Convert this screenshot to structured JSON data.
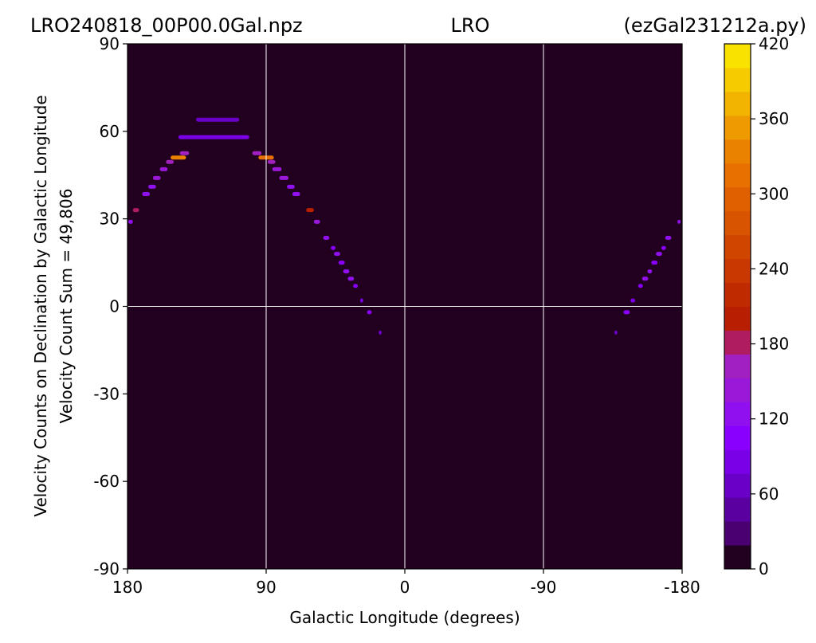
{
  "chart_data": {
    "type": "heatmap",
    "title_left": "LRO240818_00P00.0Gal.npz",
    "title_center": "LRO",
    "title_right": "(ezGal231212a.py)",
    "xlabel": "Galactic Longitude (degrees)",
    "ylabel_line1": "Velocity Counts on Declination by Galactic Longitude",
    "ylabel_line2": "Velocity Count Sum = 49,806",
    "xlim": [
      180,
      -180
    ],
    "ylim": [
      -90,
      90
    ],
    "x_ticks": [
      "180",
      "90",
      "0",
      "-90",
      "-180"
    ],
    "x_tick_values": [
      180,
      90,
      0,
      -90,
      -180
    ],
    "y_ticks": [
      "90",
      "60",
      "30",
      "0",
      "-30",
      "-60",
      "-90"
    ],
    "y_tick_values": [
      90,
      60,
      30,
      0,
      -30,
      -60,
      -90
    ],
    "grid": true,
    "background_color": "#22001f",
    "colorbar": {
      "range": [
        0,
        420
      ],
      "ticks": [
        "420",
        "360",
        "300",
        "240",
        "180",
        "120",
        "60",
        "0"
      ],
      "tick_values": [
        420,
        360,
        300,
        240,
        180,
        120,
        60,
        0
      ],
      "colors": [
        "#22001f",
        "#4a0070",
        "#5a00a0",
        "#6a00c8",
        "#7a00e8",
        "#8a00ff",
        "#9010f0",
        "#9a18d8",
        "#a020c0",
        "#b01c60",
        "#b81e00",
        "#c02a00",
        "#c83800",
        "#d04600",
        "#d85400",
        "#e06000",
        "#e87000",
        "#ea8200",
        "#ee9a00",
        "#f2b400",
        "#f6cc00",
        "#fae200"
      ]
    },
    "cells": [
      {
        "lon": 178,
        "lat": 29,
        "w": 3,
        "v": 120
      },
      {
        "lon": 174.5,
        "lat": 33,
        "w": 4,
        "v": 190
      },
      {
        "lon": 168,
        "lat": 38.5,
        "w": 5,
        "v": 130
      },
      {
        "lon": 164,
        "lat": 41,
        "w": 5,
        "v": 120
      },
      {
        "lon": 161,
        "lat": 44,
        "w": 5,
        "v": 140
      },
      {
        "lon": 156.5,
        "lat": 47,
        "w": 5,
        "v": 150
      },
      {
        "lon": 152.5,
        "lat": 49.5,
        "w": 5,
        "v": 160
      },
      {
        "lon": 147,
        "lat": 51,
        "w": 10,
        "v": 330
      },
      {
        "lon": 143,
        "lat": 52.5,
        "w": 6,
        "v": 170
      },
      {
        "lon": 124,
        "lat": 58,
        "w": 46,
        "v": 80
      },
      {
        "lon": 121.5,
        "lat": 64,
        "w": 28,
        "v": 60
      },
      {
        "lon": 96,
        "lat": 52.5,
        "w": 6,
        "v": 160
      },
      {
        "lon": 90,
        "lat": 51,
        "w": 10,
        "v": 310
      },
      {
        "lon": 86.5,
        "lat": 49.5,
        "w": 5,
        "v": 170
      },
      {
        "lon": 83,
        "lat": 47,
        "w": 6,
        "v": 150
      },
      {
        "lon": 78.5,
        "lat": 44,
        "w": 6,
        "v": 140
      },
      {
        "lon": 74,
        "lat": 41,
        "w": 5,
        "v": 120
      },
      {
        "lon": 70.5,
        "lat": 38.5,
        "w": 5,
        "v": 130
      },
      {
        "lon": 61.5,
        "lat": 33,
        "w": 5,
        "v": 200
      },
      {
        "lon": 57,
        "lat": 29,
        "w": 4,
        "v": 150
      },
      {
        "lon": 51,
        "lat": 23.5,
        "w": 4,
        "v": 120
      },
      {
        "lon": 46.5,
        "lat": 20,
        "w": 3,
        "v": 110
      },
      {
        "lon": 44,
        "lat": 18,
        "w": 4,
        "v": 120
      },
      {
        "lon": 41,
        "lat": 15,
        "w": 4,
        "v": 110
      },
      {
        "lon": 38,
        "lat": 12,
        "w": 4,
        "v": 120
      },
      {
        "lon": 35,
        "lat": 9.5,
        "w": 4,
        "v": 130
      },
      {
        "lon": 32,
        "lat": 7,
        "w": 3,
        "v": 100
      },
      {
        "lon": 28,
        "lat": 2,
        "w": 2,
        "v": 90
      },
      {
        "lon": 23,
        "lat": -2,
        "w": 3,
        "v": 110
      },
      {
        "lon": 16,
        "lat": -9,
        "w": 2,
        "v": 60
      },
      {
        "lon": -137,
        "lat": -9,
        "w": 2,
        "v": 60
      },
      {
        "lon": -144,
        "lat": -2,
        "w": 4,
        "v": 110
      },
      {
        "lon": -148,
        "lat": 2,
        "w": 3,
        "v": 90
      },
      {
        "lon": -153,
        "lat": 7,
        "w": 3,
        "v": 100
      },
      {
        "lon": -156,
        "lat": 9.5,
        "w": 4,
        "v": 130
      },
      {
        "lon": -159,
        "lat": 12,
        "w": 3,
        "v": 120
      },
      {
        "lon": -162,
        "lat": 15,
        "w": 4,
        "v": 110
      },
      {
        "lon": -165,
        "lat": 18,
        "w": 4,
        "v": 120
      },
      {
        "lon": -168,
        "lat": 20,
        "w": 3,
        "v": 110
      },
      {
        "lon": -171,
        "lat": 23.5,
        "w": 4,
        "v": 120
      },
      {
        "lon": -178,
        "lat": 29,
        "w": 2,
        "v": 120
      }
    ]
  }
}
